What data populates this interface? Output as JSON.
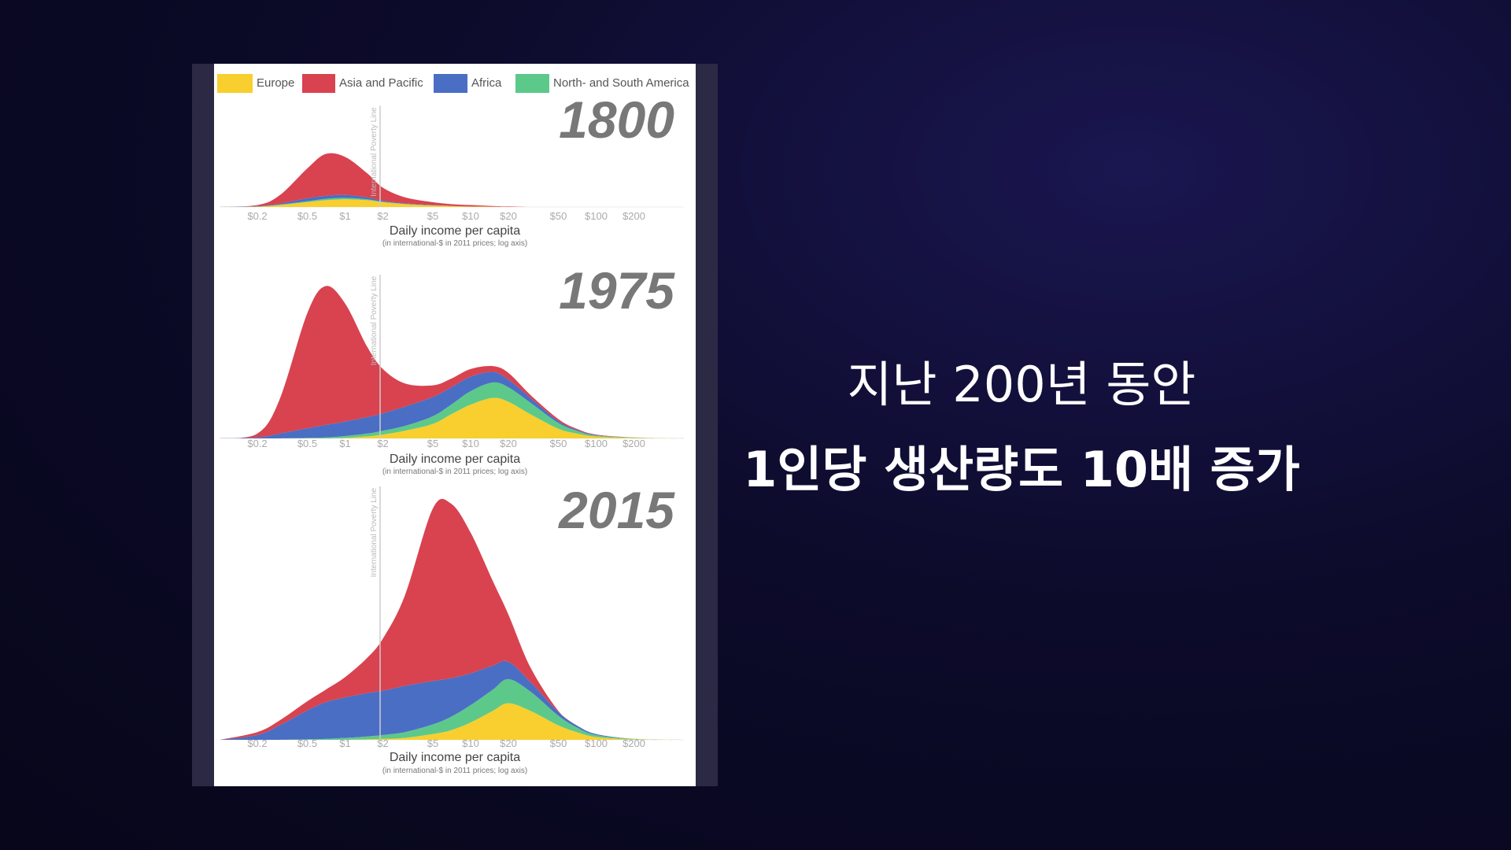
{
  "chart_data": [
    {
      "type": "area",
      "title": "1800",
      "x": [
        0.1,
        0.2,
        0.3,
        0.5,
        0.7,
        1,
        1.5,
        2,
        3,
        5,
        7,
        10,
        15,
        20,
        30,
        50,
        70,
        100,
        200,
        500
      ],
      "xlim": [
        0.1,
        500
      ],
      "xlog": true,
      "xticks": [
        {
          "value": 0.2,
          "label": "$0.2"
        },
        {
          "value": 0.5,
          "label": "$0.5"
        },
        {
          "value": 1,
          "label": "$1"
        },
        {
          "value": 2,
          "label": "$2"
        },
        {
          "value": 5,
          "label": "$5"
        },
        {
          "value": 10,
          "label": "$10"
        },
        {
          "value": 20,
          "label": "$20"
        },
        {
          "value": 50,
          "label": "$50"
        },
        {
          "value": 100,
          "label": "$100"
        },
        {
          "value": 200,
          "label": "$200"
        }
      ],
      "xlabel": "Daily income per capita",
      "xsubtitle": "(in international-$ in 2011 prices; log axis)",
      "ylim": [
        0,
        105
      ],
      "stacked": true,
      "annotation": {
        "value": 1.9,
        "label": "International Poverty Line"
      },
      "series": [
        {
          "name": "Europe",
          "color": "#f8cf2e",
          "values": [
            0,
            0.5,
            2,
            5,
            7,
            8,
            7,
            5,
            3,
            1.5,
            1,
            0.5,
            0.3,
            0,
            0,
            0,
            0,
            0,
            0,
            0
          ]
        },
        {
          "name": "Asia and Pacific",
          "color": "#d8434f",
          "values": [
            0,
            1,
            8.5,
            31,
            43.5,
            39.5,
            25,
            13.5,
            6.2,
            3,
            1.9,
            1.5,
            0.7,
            0.5,
            0,
            0,
            0,
            0,
            0,
            0
          ]
        },
        {
          "name": "Africa",
          "color": "#4a6ec4",
          "values": [
            0,
            0.5,
            1,
            3,
            3,
            3,
            2,
            1,
            0.5,
            0.3,
            0,
            0,
            0,
            0,
            0,
            0,
            0,
            0,
            0,
            0
          ]
        },
        {
          "name": "North- and South America",
          "color": "#5cc98b",
          "values": [
            0,
            0,
            0.5,
            1,
            1.5,
            1.5,
            1,
            0.5,
            0.3,
            0.2,
            0.1,
            0,
            0,
            0,
            0,
            0,
            0,
            0,
            0,
            0
          ]
        }
      ]
    },
    {
      "type": "area",
      "title": "1975",
      "x": [
        0.1,
        0.2,
        0.3,
        0.5,
        0.7,
        1,
        1.5,
        2,
        3,
        5,
        7,
        10,
        15,
        20,
        30,
        50,
        70,
        100,
        200,
        500
      ],
      "xlim": [
        0.1,
        500
      ],
      "xlog": true,
      "xticks": [
        {
          "value": 0.2,
          "label": "$0.2"
        },
        {
          "value": 0.5,
          "label": "$0.5"
        },
        {
          "value": 1,
          "label": "$1"
        },
        {
          "value": 2,
          "label": "$2"
        },
        {
          "value": 5,
          "label": "$5"
        },
        {
          "value": 10,
          "label": "$10"
        },
        {
          "value": 20,
          "label": "$20"
        },
        {
          "value": 50,
          "label": "$50"
        },
        {
          "value": 100,
          "label": "$100"
        },
        {
          "value": 200,
          "label": "$200"
        }
      ],
      "xlabel": "Daily income per capita",
      "xsubtitle": "(in international-$ in 2011 prices; log axis)",
      "ylim": [
        0,
        170
      ],
      "stacked": true,
      "annotation": {
        "value": 1.9,
        "label": "International Poverty Line"
      },
      "series": [
        {
          "color": "#f8cf2e",
          "values": [
            0,
            0,
            0,
            0,
            0,
            0.5,
            2,
            4,
            8,
            15,
            25,
            35,
            42,
            38,
            25,
            10,
            5,
            2,
            0.5,
            0
          ]
        },
        {
          "color": "#d8434f",
          "values": [
            0,
            4,
            35,
            119.5,
            144,
            122.5,
            73,
            46,
            24,
            12,
            9,
            8,
            6,
            7,
            3,
            2,
            1,
            0.5,
            0.1,
            0
          ]
        },
        {
          "color": "#4a6ec4",
          "values": [
            0,
            1,
            5,
            10,
            13,
            15,
            17,
            18,
            20,
            20,
            18,
            15,
            11,
            8,
            5,
            2,
            1,
            0.5,
            0.1,
            0
          ]
        },
        {
          "color": "#5cc98b",
          "values": [
            0,
            0,
            0,
            0.5,
            1,
            2,
            3,
            4,
            5,
            8,
            10,
            14,
            16,
            15,
            12,
            6,
            3,
            1,
            0.3,
            0
          ]
        }
      ]
    },
    {
      "type": "area",
      "title": "2015",
      "x": [
        0.1,
        0.2,
        0.3,
        0.5,
        0.7,
        1,
        1.5,
        2,
        3,
        5,
        7,
        10,
        15,
        20,
        30,
        50,
        70,
        100,
        200,
        500
      ],
      "xlim": [
        0.1,
        500
      ],
      "xlog": true,
      "xticks": [
        {
          "value": 0.2,
          "label": "$0.2"
        },
        {
          "value": 0.5,
          "label": "$0.5"
        },
        {
          "value": 1,
          "label": "$1"
        },
        {
          "value": 2,
          "label": "$2"
        },
        {
          "value": 5,
          "label": "$5"
        },
        {
          "value": 10,
          "label": "$10"
        },
        {
          "value": 20,
          "label": "$20"
        },
        {
          "value": 50,
          "label": "$50"
        },
        {
          "value": 100,
          "label": "$100"
        },
        {
          "value": 200,
          "label": "$200"
        }
      ],
      "xlabel": "Daily income per capita",
      "xsubtitle": "(in international-$ in 2011 prices; log axis)",
      "ylim": [
        0,
        263
      ],
      "stacked": true,
      "annotation": {
        "value": 1.9,
        "label": "International Poverty Line"
      },
      "series": [
        {
          "color": "#f8cf2e",
          "values": [
            0,
            0,
            0,
            0,
            0,
            0,
            0.5,
            1,
            2,
            6,
            10,
            18,
            30,
            38,
            30,
            15,
            8,
            3,
            0.5,
            0
          ]
        },
        {
          "color": "#d8434f",
          "values": [
            0,
            3,
            5,
            9.5,
            13,
            21,
            36.5,
            54,
            94,
            179,
            181,
            146,
            88,
            49,
            15,
            1,
            0,
            0,
            0,
            0
          ]
        },
        {
          "color": "#4a6ec4",
          "values": [
            0,
            5,
            15,
            30,
            38,
            42,
            45,
            46,
            48,
            45,
            40,
            33,
            25,
            18,
            10,
            4,
            2,
            1,
            0,
            0
          ]
        },
        {
          "color": "#5cc98b",
          "values": [
            0,
            0,
            0,
            0.5,
            1,
            2,
            3,
            4,
            6,
            10,
            14,
            18,
            22,
            25,
            20,
            10,
            5,
            2,
            0.5,
            0
          ]
        }
      ]
    }
  ],
  "caption": {
    "line1": "지난 200년 동안",
    "line2": "1인당 생산량도 10배 증가"
  }
}
